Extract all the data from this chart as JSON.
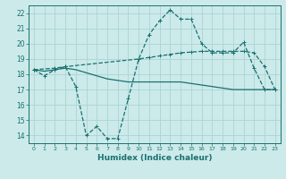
{
  "xlabel": "Humidex (Indice chaleur)",
  "background_color": "#cceaea",
  "grid_color": "#aad4d4",
  "line_color": "#1a7070",
  "xlim": [
    -0.5,
    23.5
  ],
  "ylim": [
    13.5,
    22.5
  ],
  "yticks": [
    14,
    15,
    16,
    17,
    18,
    19,
    20,
    21,
    22
  ],
  "xticks": [
    0,
    1,
    2,
    3,
    4,
    5,
    6,
    7,
    8,
    9,
    10,
    11,
    12,
    13,
    14,
    15,
    16,
    17,
    18,
    19,
    20,
    21,
    22,
    23
  ],
  "line1_x": [
    0,
    1,
    2,
    3,
    4,
    5,
    6,
    7,
    8,
    9,
    10,
    11,
    12,
    13,
    14,
    15,
    16,
    17,
    18,
    19,
    20,
    21,
    22,
    23
  ],
  "line1_y": [
    18.3,
    17.9,
    18.3,
    18.5,
    17.2,
    14.0,
    14.6,
    13.8,
    13.8,
    16.4,
    19.0,
    20.6,
    21.5,
    22.2,
    21.6,
    21.6,
    20.0,
    19.4,
    19.4,
    19.4,
    20.1,
    18.4,
    17.0,
    17.0
  ],
  "line2_x": [
    0,
    2,
    3,
    10,
    11,
    12,
    13,
    14,
    15,
    16,
    17,
    18,
    19,
    20,
    21,
    22,
    23
  ],
  "line2_y": [
    18.3,
    18.4,
    18.5,
    19.0,
    19.1,
    19.2,
    19.3,
    19.4,
    19.45,
    19.5,
    19.5,
    19.5,
    19.5,
    19.5,
    19.4,
    18.5,
    17.0
  ],
  "line3_x": [
    0,
    1,
    2,
    3,
    4,
    5,
    6,
    7,
    8,
    9,
    10,
    11,
    12,
    13,
    14,
    15,
    16,
    17,
    18,
    19,
    20,
    21,
    22,
    23
  ],
  "line3_y": [
    18.3,
    18.2,
    18.3,
    18.4,
    18.3,
    18.1,
    17.9,
    17.7,
    17.6,
    17.5,
    17.5,
    17.5,
    17.5,
    17.5,
    17.5,
    17.4,
    17.3,
    17.2,
    17.1,
    17.0,
    17.0,
    17.0,
    17.0,
    17.0
  ]
}
